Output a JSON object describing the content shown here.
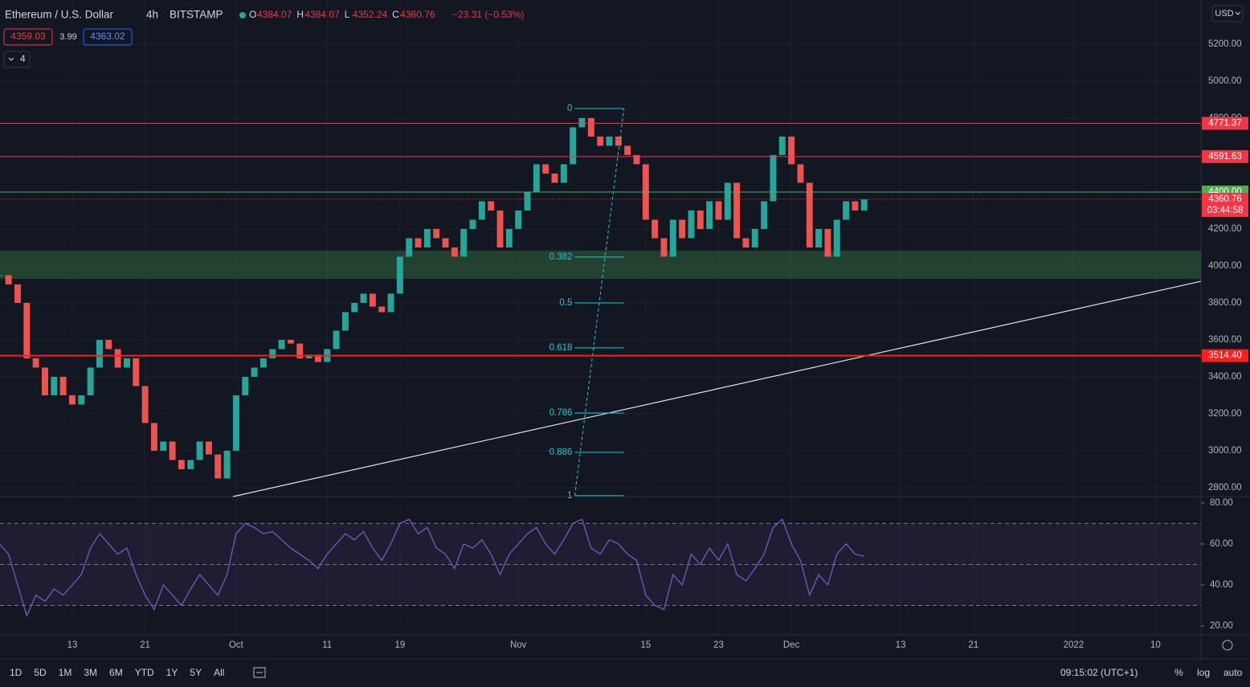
{
  "header": {
    "symbol": "Ethereum / U.S. Dollar",
    "interval": "4h",
    "exchange": "BITSTAMP",
    "ohlc": [
      {
        "key": "O",
        "value": "4384.07"
      },
      {
        "key": "H",
        "value": "4384.07"
      },
      {
        "key": "L",
        "value": "4352.24"
      },
      {
        "key": "C",
        "value": "4360.76"
      }
    ],
    "change": "−23.31 (−0.53%)",
    "bid": "4359.03",
    "spread": "3.99",
    "ask": "4363.02",
    "indicators_count": "4",
    "currency": "USD"
  },
  "chart": {
    "xlim": [
      4.06,
      136
    ],
    "xticks": [
      {
        "value": 12,
        "label": "13"
      },
      {
        "value": 20,
        "label": "21"
      },
      {
        "value": 30,
        "label": "Oct"
      },
      {
        "value": 40,
        "label": "11"
      },
      {
        "value": 48,
        "label": "19"
      },
      {
        "value": 61,
        "label": "Nov"
      },
      {
        "value": 75,
        "label": "15"
      },
      {
        "value": 83,
        "label": "23"
      },
      {
        "value": 91,
        "label": "Dec"
      },
      {
        "value": 103,
        "label": "13"
      },
      {
        "value": 111,
        "label": "21"
      },
      {
        "value": 122,
        "label": "2022"
      },
      {
        "value": 131,
        "label": "10"
      }
    ],
    "price": {
      "ylim": [
        2752,
        5439
      ],
      "yticks": [
        {
          "value": 5200,
          "label": "5200.00"
        },
        {
          "value": 5000,
          "label": "5000.00"
        },
        {
          "value": 4800,
          "label": "4800.00"
        },
        {
          "value": 4200,
          "label": "4200.00"
        },
        {
          "value": 4000,
          "label": "4000.00"
        },
        {
          "value": 3800,
          "label": "3800.00"
        },
        {
          "value": 3600,
          "label": "3600.00"
        },
        {
          "value": 3400,
          "label": "3400.00"
        },
        {
          "value": 3200,
          "label": "3200.00"
        },
        {
          "value": 3000,
          "label": "3000.00"
        },
        {
          "value": 2800,
          "label": "2800.00"
        }
      ],
      "x": [
        4,
        5,
        6,
        7,
        8,
        9,
        10,
        11,
        12,
        13,
        14,
        15,
        16,
        17,
        18,
        19,
        20,
        21,
        22,
        23,
        24,
        25,
        26,
        27,
        28,
        29,
        30,
        31,
        32,
        33,
        34,
        35,
        36,
        37,
        38,
        39,
        40,
        41,
        42,
        43,
        44,
        45,
        46,
        47,
        48,
        49,
        50,
        51,
        52,
        53,
        54,
        55,
        56,
        57,
        58,
        59,
        60,
        61,
        62,
        63,
        64,
        65,
        66,
        67,
        68,
        69,
        70,
        71,
        72,
        73,
        74,
        75,
        76,
        77,
        78,
        79,
        80,
        81,
        82,
        83,
        84,
        85,
        86,
        87,
        88,
        89,
        90,
        91,
        92,
        93,
        94,
        95,
        96,
        97,
        98,
        99
      ],
      "closes": [
        3950,
        3900,
        3800,
        3500,
        3450,
        3300,
        3400,
        3300,
        3250,
        3300,
        3450,
        3600,
        3550,
        3450,
        3500,
        3350,
        3150,
        3000,
        3050,
        2950,
        2900,
        2950,
        3050,
        2980,
        2850,
        3000,
        3300,
        3400,
        3450,
        3500,
        3550,
        3600,
        3580,
        3500,
        3520,
        3480,
        3550,
        3650,
        3750,
        3800,
        3850,
        3780,
        3750,
        3850,
        4050,
        4150,
        4100,
        4200,
        4150,
        4100,
        4050,
        4200,
        4250,
        4350,
        4300,
        4100,
        4200,
        4300,
        4400,
        4550,
        4500,
        4450,
        4550,
        4750,
        4800,
        4700,
        4650,
        4700,
        4650,
        4600,
        4550,
        4250,
        4150,
        4050,
        4250,
        4150,
        4300,
        4200,
        4350,
        4250,
        4450,
        4150,
        4100,
        4200,
        4350,
        4600,
        4700,
        4550,
        4450,
        4100,
        4200,
        4050,
        4250,
        4350,
        4300,
        4360
      ],
      "up_color": "#26a69a",
      "down_color": "#ef5350",
      "levels": [
        {
          "value": 4771.37,
          "label": "4771.37",
          "color": "#f23645"
        },
        {
          "value": 4591.63,
          "label": "4591.63",
          "color": "#f23645"
        },
        {
          "value": 4400,
          "label": "4400.00",
          "color": "#4caf50"
        },
        {
          "value": 3514.4,
          "label": "3514.40",
          "color": "#ff1e1e"
        }
      ],
      "zone": [
        3930,
        4083
      ],
      "last": {
        "value": 4360.76,
        "label": "4360.76",
        "countdown": "03:44:58"
      },
      "fib": {
        "x": [
          67.2,
          72.6
        ],
        "levels": [
          {
            "ratio": 0,
            "price": 4852
          },
          {
            "ratio": 0.382,
            "price": 4048
          },
          {
            "ratio": 0.5,
            "price": 3800
          },
          {
            "ratio": 0.618,
            "price": 3557
          },
          {
            "ratio": 0.786,
            "price": 3204
          },
          {
            "ratio": 0.886,
            "price": 2991
          },
          {
            "ratio": 1,
            "price": 2757
          }
        ]
      },
      "trendline": {
        "x": [
          29.65,
          136
        ],
        "y": [
          2752,
          3917
        ]
      }
    },
    "rsi": {
      "ylim": [
        15.7,
        83.1
      ],
      "yticks": [
        {
          "value": 80,
          "label": "80.00"
        },
        {
          "value": 60,
          "label": "60.00"
        },
        {
          "value": 40,
          "label": "40.00"
        },
        {
          "value": 20,
          "label": "20.00"
        }
      ],
      "bands": [
        30,
        50,
        70
      ],
      "color": "#7e57c2",
      "values": [
        60,
        55,
        40,
        25,
        35,
        32,
        38,
        35,
        40,
        45,
        58,
        65,
        60,
        55,
        58,
        45,
        35,
        28,
        40,
        35,
        30,
        38,
        45,
        40,
        35,
        45,
        65,
        70,
        68,
        65,
        66,
        62,
        58,
        55,
        52,
        48,
        55,
        60,
        65,
        62,
        66,
        58,
        52,
        60,
        70,
        72,
        65,
        68,
        58,
        55,
        48,
        60,
        58,
        62,
        55,
        45,
        55,
        60,
        65,
        68,
        60,
        55,
        62,
        70,
        72,
        58,
        55,
        62,
        60,
        55,
        52,
        35,
        30,
        28,
        45,
        40,
        55,
        50,
        58,
        52,
        60,
        45,
        42,
        48,
        55,
        68,
        72,
        60,
        52,
        35,
        45,
        40,
        55,
        60,
        55,
        54
      ]
    }
  },
  "toolbar": {
    "ranges": [
      "1D",
      "5D",
      "1M",
      "3M",
      "6M",
      "YTD",
      "1Y",
      "5Y",
      "All"
    ],
    "clock": "09:15:02 (UTC+1)",
    "options": [
      "%",
      "log",
      "auto"
    ]
  }
}
